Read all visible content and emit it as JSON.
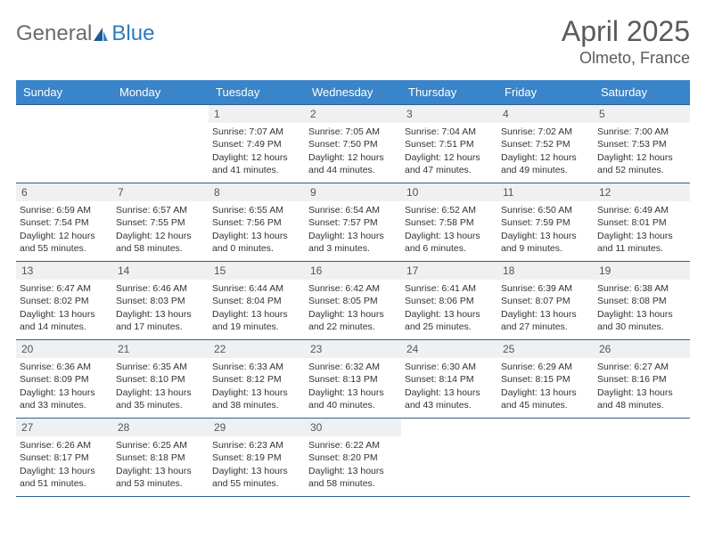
{
  "logo": {
    "word1": "General",
    "word2": "Blue"
  },
  "header": {
    "title": "April 2025",
    "location": "Olmeto, France"
  },
  "weekdays": [
    "Sunday",
    "Monday",
    "Tuesday",
    "Wednesday",
    "Thursday",
    "Friday",
    "Saturday"
  ],
  "colors": {
    "header_bg": "#3a84c9",
    "header_text": "#ffffff",
    "daynum_bg": "#eef0f2",
    "border": "#2f5f8f",
    "logo_gray": "#6b6b6b",
    "logo_blue": "#2f79bf"
  },
  "weeks": [
    [
      null,
      null,
      {
        "n": "1",
        "sr": "Sunrise: 7:07 AM",
        "ss": "Sunset: 7:49 PM",
        "dl": "Daylight: 12 hours and 41 minutes."
      },
      {
        "n": "2",
        "sr": "Sunrise: 7:05 AM",
        "ss": "Sunset: 7:50 PM",
        "dl": "Daylight: 12 hours and 44 minutes."
      },
      {
        "n": "3",
        "sr": "Sunrise: 7:04 AM",
        "ss": "Sunset: 7:51 PM",
        "dl": "Daylight: 12 hours and 47 minutes."
      },
      {
        "n": "4",
        "sr": "Sunrise: 7:02 AM",
        "ss": "Sunset: 7:52 PM",
        "dl": "Daylight: 12 hours and 49 minutes."
      },
      {
        "n": "5",
        "sr": "Sunrise: 7:00 AM",
        "ss": "Sunset: 7:53 PM",
        "dl": "Daylight: 12 hours and 52 minutes."
      }
    ],
    [
      {
        "n": "6",
        "sr": "Sunrise: 6:59 AM",
        "ss": "Sunset: 7:54 PM",
        "dl": "Daylight: 12 hours and 55 minutes."
      },
      {
        "n": "7",
        "sr": "Sunrise: 6:57 AM",
        "ss": "Sunset: 7:55 PM",
        "dl": "Daylight: 12 hours and 58 minutes."
      },
      {
        "n": "8",
        "sr": "Sunrise: 6:55 AM",
        "ss": "Sunset: 7:56 PM",
        "dl": "Daylight: 13 hours and 0 minutes."
      },
      {
        "n": "9",
        "sr": "Sunrise: 6:54 AM",
        "ss": "Sunset: 7:57 PM",
        "dl": "Daylight: 13 hours and 3 minutes."
      },
      {
        "n": "10",
        "sr": "Sunrise: 6:52 AM",
        "ss": "Sunset: 7:58 PM",
        "dl": "Daylight: 13 hours and 6 minutes."
      },
      {
        "n": "11",
        "sr": "Sunrise: 6:50 AM",
        "ss": "Sunset: 7:59 PM",
        "dl": "Daylight: 13 hours and 9 minutes."
      },
      {
        "n": "12",
        "sr": "Sunrise: 6:49 AM",
        "ss": "Sunset: 8:01 PM",
        "dl": "Daylight: 13 hours and 11 minutes."
      }
    ],
    [
      {
        "n": "13",
        "sr": "Sunrise: 6:47 AM",
        "ss": "Sunset: 8:02 PM",
        "dl": "Daylight: 13 hours and 14 minutes."
      },
      {
        "n": "14",
        "sr": "Sunrise: 6:46 AM",
        "ss": "Sunset: 8:03 PM",
        "dl": "Daylight: 13 hours and 17 minutes."
      },
      {
        "n": "15",
        "sr": "Sunrise: 6:44 AM",
        "ss": "Sunset: 8:04 PM",
        "dl": "Daylight: 13 hours and 19 minutes."
      },
      {
        "n": "16",
        "sr": "Sunrise: 6:42 AM",
        "ss": "Sunset: 8:05 PM",
        "dl": "Daylight: 13 hours and 22 minutes."
      },
      {
        "n": "17",
        "sr": "Sunrise: 6:41 AM",
        "ss": "Sunset: 8:06 PM",
        "dl": "Daylight: 13 hours and 25 minutes."
      },
      {
        "n": "18",
        "sr": "Sunrise: 6:39 AM",
        "ss": "Sunset: 8:07 PM",
        "dl": "Daylight: 13 hours and 27 minutes."
      },
      {
        "n": "19",
        "sr": "Sunrise: 6:38 AM",
        "ss": "Sunset: 8:08 PM",
        "dl": "Daylight: 13 hours and 30 minutes."
      }
    ],
    [
      {
        "n": "20",
        "sr": "Sunrise: 6:36 AM",
        "ss": "Sunset: 8:09 PM",
        "dl": "Daylight: 13 hours and 33 minutes."
      },
      {
        "n": "21",
        "sr": "Sunrise: 6:35 AM",
        "ss": "Sunset: 8:10 PM",
        "dl": "Daylight: 13 hours and 35 minutes."
      },
      {
        "n": "22",
        "sr": "Sunrise: 6:33 AM",
        "ss": "Sunset: 8:12 PM",
        "dl": "Daylight: 13 hours and 38 minutes."
      },
      {
        "n": "23",
        "sr": "Sunrise: 6:32 AM",
        "ss": "Sunset: 8:13 PM",
        "dl": "Daylight: 13 hours and 40 minutes."
      },
      {
        "n": "24",
        "sr": "Sunrise: 6:30 AM",
        "ss": "Sunset: 8:14 PM",
        "dl": "Daylight: 13 hours and 43 minutes."
      },
      {
        "n": "25",
        "sr": "Sunrise: 6:29 AM",
        "ss": "Sunset: 8:15 PM",
        "dl": "Daylight: 13 hours and 45 minutes."
      },
      {
        "n": "26",
        "sr": "Sunrise: 6:27 AM",
        "ss": "Sunset: 8:16 PM",
        "dl": "Daylight: 13 hours and 48 minutes."
      }
    ],
    [
      {
        "n": "27",
        "sr": "Sunrise: 6:26 AM",
        "ss": "Sunset: 8:17 PM",
        "dl": "Daylight: 13 hours and 51 minutes."
      },
      {
        "n": "28",
        "sr": "Sunrise: 6:25 AM",
        "ss": "Sunset: 8:18 PM",
        "dl": "Daylight: 13 hours and 53 minutes."
      },
      {
        "n": "29",
        "sr": "Sunrise: 6:23 AM",
        "ss": "Sunset: 8:19 PM",
        "dl": "Daylight: 13 hours and 55 minutes."
      },
      {
        "n": "30",
        "sr": "Sunrise: 6:22 AM",
        "ss": "Sunset: 8:20 PM",
        "dl": "Daylight: 13 hours and 58 minutes."
      },
      null,
      null,
      null
    ]
  ]
}
